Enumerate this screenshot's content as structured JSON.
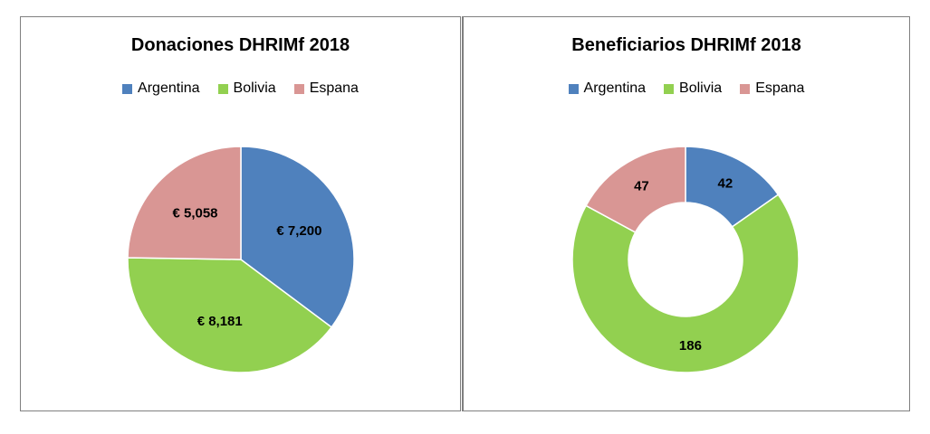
{
  "chart_data": [
    {
      "type": "pie",
      "title": "Donaciones DHRIMf 2018",
      "categories": [
        "Argentina",
        "Bolivia",
        "Espana"
      ],
      "values": [
        7200,
        8181,
        5058
      ],
      "labels": [
        "€ 7,200",
        "€ 8,181",
        "€ 5,058"
      ],
      "colors": [
        "#4f81bd",
        "#92d050",
        "#d99694"
      ],
      "legend_position": "top"
    },
    {
      "type": "pie",
      "title": "Beneficiarios DHRIMf 2018",
      "categories": [
        "Argentina",
        "Bolivia",
        "Espana"
      ],
      "values": [
        42,
        186,
        47
      ],
      "labels": [
        "42",
        "186",
        "47"
      ],
      "colors": [
        "#4f81bd",
        "#92d050",
        "#d99694"
      ],
      "legend_position": "top",
      "donut": true
    }
  ]
}
